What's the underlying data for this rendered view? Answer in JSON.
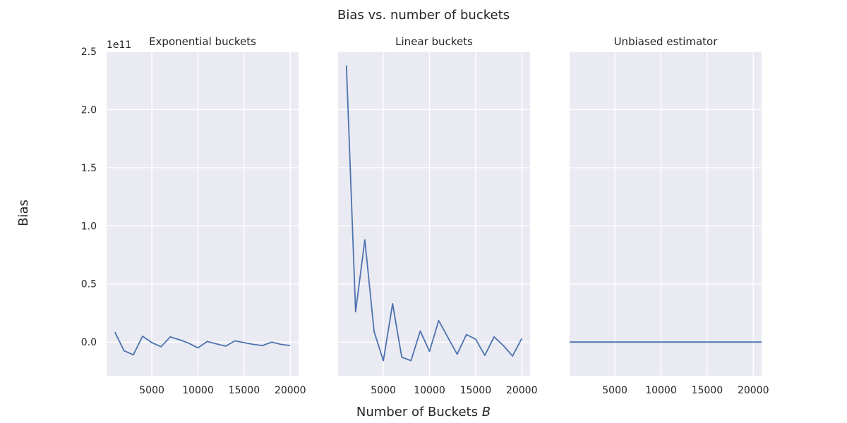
{
  "figure": {
    "title": "Bias vs. number of buckets",
    "xlabel": "Number of Buckets",
    "xlabel_symbol": "B",
    "ylabel": "Bias",
    "y_offset_label": "1e11"
  },
  "chart_data": [
    {
      "type": "line",
      "title": "Exponential buckets",
      "xticks": [
        5000,
        10000,
        15000,
        20000
      ],
      "yticks": [
        0.0,
        0.5,
        1.0,
        1.5,
        2.0,
        2.5
      ],
      "ytick_labels": [
        "0.0",
        "0.5",
        "1.0",
        "1.5",
        "2.0",
        "2.5"
      ],
      "xlim": [
        100,
        20900
      ],
      "ylim": [
        -0.29,
        2.5
      ],
      "y_scale_note": "values in units of 1e11",
      "grid": true,
      "series": [
        {
          "color": "#4c72b0",
          "x": [
            1000,
            2000,
            3000,
            4000,
            5000,
            6000,
            7000,
            8000,
            9000,
            10000,
            11000,
            12000,
            13000,
            14000,
            15000,
            16000,
            17000,
            18000,
            19000,
            20000
          ],
          "y": [
            0.085,
            -0.075,
            -0.11,
            0.05,
            -0.005,
            -0.04,
            0.045,
            0.02,
            -0.01,
            -0.05,
            0.005,
            -0.015,
            -0.035,
            0.01,
            -0.005,
            -0.02,
            -0.03,
            0.0,
            -0.02,
            -0.03
          ]
        }
      ]
    },
    {
      "type": "line",
      "title": "Linear buckets",
      "xticks": [
        5000,
        10000,
        15000,
        20000
      ],
      "xlim": [
        100,
        20900
      ],
      "ylim": [
        -0.29,
        2.5
      ],
      "grid": true,
      "series": [
        {
          "color": "#4c72b0",
          "x": [
            1000,
            2000,
            3000,
            4000,
            5000,
            6000,
            7000,
            8000,
            9000,
            10000,
            11000,
            12000,
            13000,
            14000,
            15000,
            16000,
            17000,
            18000,
            19000,
            20000
          ],
          "y": [
            2.38,
            0.26,
            0.88,
            0.09,
            -0.16,
            0.33,
            -0.13,
            -0.16,
            0.095,
            -0.08,
            0.185,
            0.04,
            -0.105,
            0.065,
            0.025,
            -0.115,
            0.045,
            -0.03,
            -0.12,
            0.03
          ]
        }
      ]
    },
    {
      "type": "line",
      "title": "Unbiased estimator",
      "xticks": [
        5000,
        10000,
        15000,
        20000
      ],
      "xlim": [
        100,
        20900
      ],
      "ylim": [
        -0.29,
        2.5
      ],
      "grid": true,
      "series": [
        {
          "color": "#4c72b0",
          "x": [
            100,
            20900
          ],
          "y": [
            0.0,
            0.0
          ]
        }
      ]
    }
  ]
}
